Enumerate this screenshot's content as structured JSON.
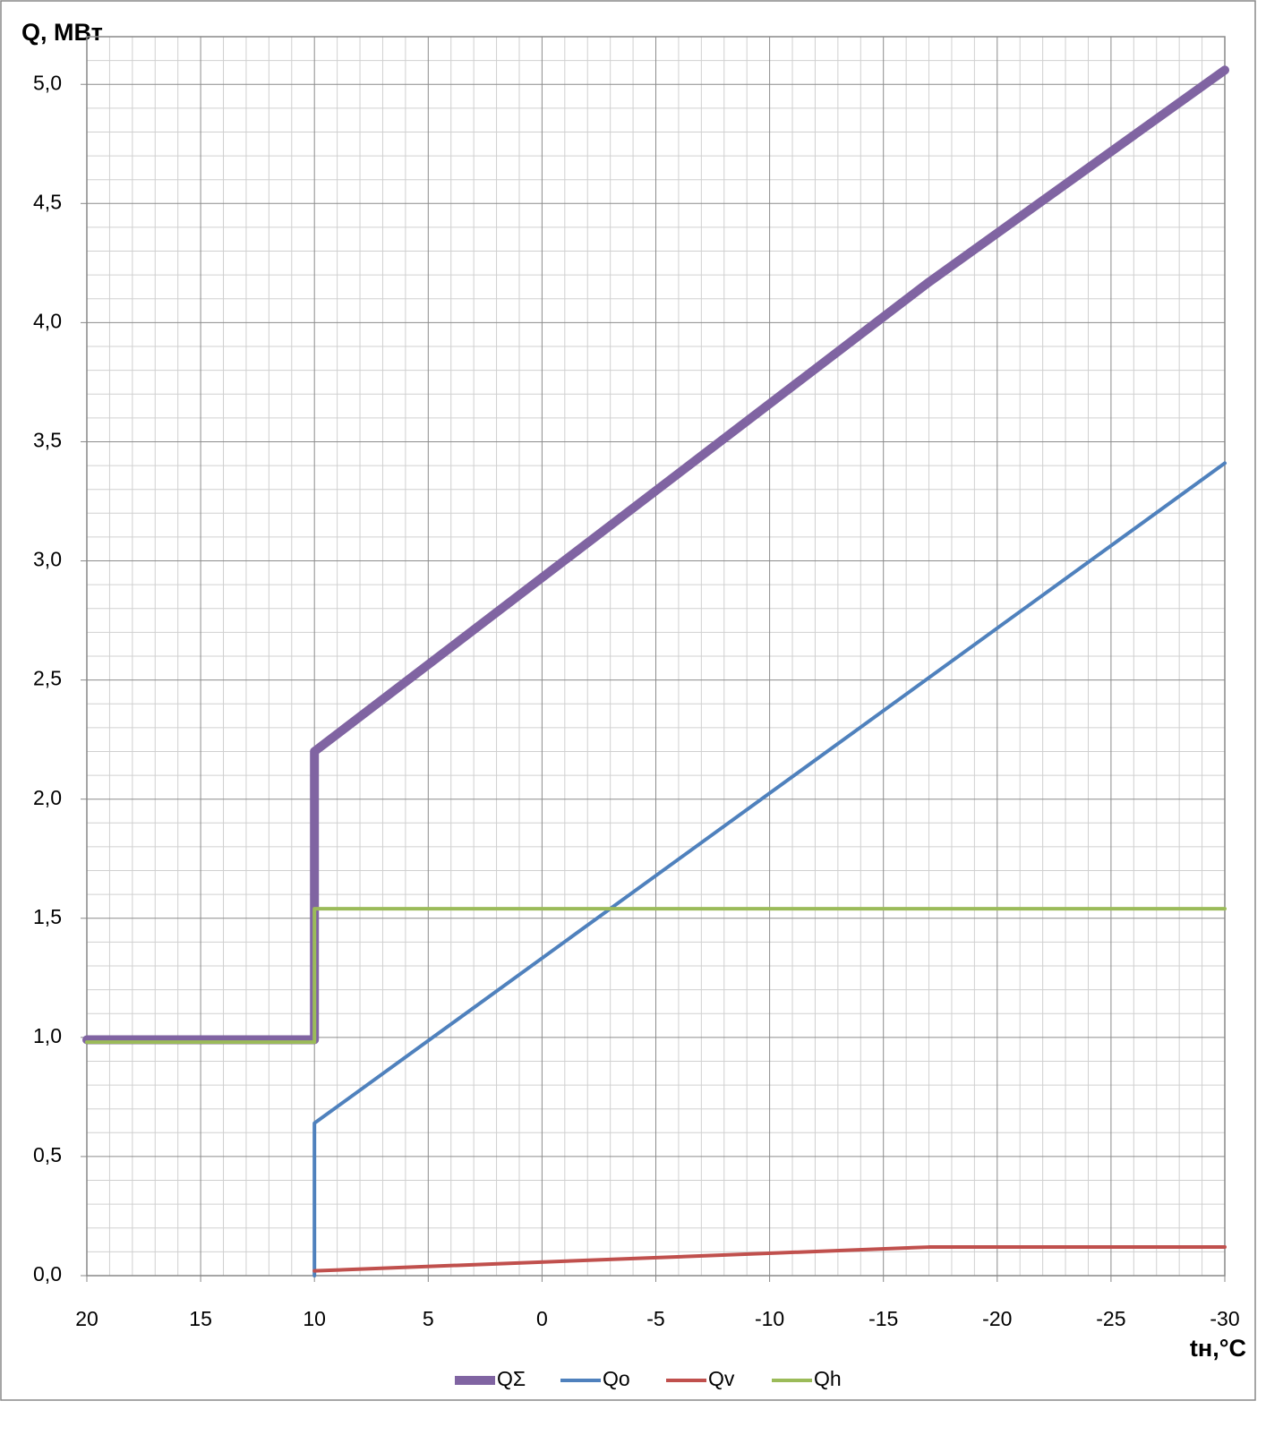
{
  "chart_data": {
    "type": "line",
    "y_label": "Q, МВт",
    "x_label": "tн,°C",
    "xlim": [
      20,
      -30
    ],
    "xticks": [
      20,
      15,
      10,
      5,
      0,
      -5,
      -10,
      -15,
      -20,
      -25,
      -30
    ],
    "ylim": [
      0,
      5.2
    ],
    "yticks": [
      {
        "value": 0,
        "label": "0,0"
      },
      {
        "value": 0.5,
        "label": "0,5"
      },
      {
        "value": 1,
        "label": "1,0"
      },
      {
        "value": 1.5,
        "label": "1,5"
      },
      {
        "value": 2,
        "label": "2,0"
      },
      {
        "value": 2.5,
        "label": "2,5"
      },
      {
        "value": 3,
        "label": "3,0"
      },
      {
        "value": 3.5,
        "label": "3,5"
      },
      {
        "value": 4,
        "label": "4,0"
      },
      {
        "value": 4.5,
        "label": "4,5"
      },
      {
        "value": 5,
        "label": "5,0"
      }
    ],
    "grid": true,
    "legend": "bottom",
    "series": [
      {
        "name": "QΣ",
        "color": "#8064a2",
        "x": [
          20,
          10,
          10,
          -17,
          -30
        ],
        "values": [
          0.99,
          0.99,
          2.2,
          4.17,
          5.06
        ]
      },
      {
        "name": "Qo",
        "color": "#4f81bd",
        "x": [
          10,
          10,
          -30
        ],
        "values": [
          0,
          0.64,
          3.41
        ]
      },
      {
        "name": "Qv",
        "color": "#c0504d",
        "x": [
          10,
          -17,
          -30
        ],
        "values": [
          0.02,
          0.12,
          0.12
        ]
      },
      {
        "name": "Qh",
        "color": "#9bbb59",
        "x": [
          20,
          10,
          10,
          -30
        ],
        "values": [
          0.98,
          0.98,
          1.54,
          1.54
        ]
      }
    ]
  }
}
